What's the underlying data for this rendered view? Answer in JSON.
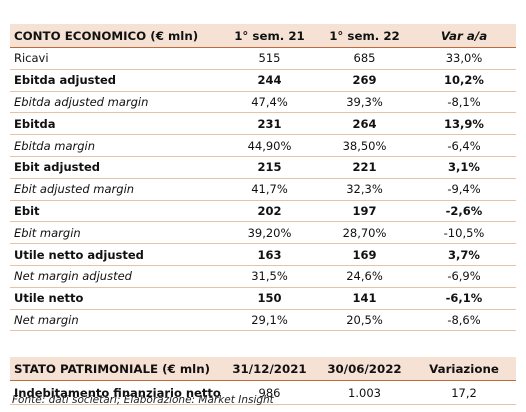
{
  "income": {
    "headers": [
      "CONTO ECONOMICO (€ mln)",
      "1° sem. 21",
      "1° sem. 22",
      "Var a/a"
    ],
    "rows": [
      {
        "label": "Ricavi",
        "v1": "515",
        "v2": "685",
        "v3": "33,0%",
        "style": "normal"
      },
      {
        "label": "Ebitda adjusted",
        "v1": "244",
        "v2": "269",
        "v3": "10,2%",
        "style": "bold"
      },
      {
        "label": "Ebitda adjusted margin",
        "v1": "47,4%",
        "v2": "39,3%",
        "v3": "-8,1%",
        "style": "italic"
      },
      {
        "label": "Ebitda",
        "v1": "231",
        "v2": "264",
        "v3": "13,9%",
        "style": "bold"
      },
      {
        "label": "Ebitda margin",
        "v1": "44,90%",
        "v2": "38,50%",
        "v3": "-6,4%",
        "style": "italic"
      },
      {
        "label": "Ebit adjusted",
        "v1": "215",
        "v2": "221",
        "v3": "3,1%",
        "style": "bold"
      },
      {
        "label": "Ebit adjusted margin",
        "v1": "41,7%",
        "v2": "32,3%",
        "v3": "-9,4%",
        "style": "italic"
      },
      {
        "label": "Ebit",
        "v1": "202",
        "v2": "197",
        "v3": "-2,6%",
        "style": "bold"
      },
      {
        "label": "Ebit margin",
        "v1": "39,20%",
        "v2": "28,70%",
        "v3": "-10,5%",
        "style": "italic"
      },
      {
        "label": "Utile netto adjusted",
        "v1": "163",
        "v2": "169",
        "v3": "3,7%",
        "style": "bold"
      },
      {
        "label": "Net margin adjusted",
        "v1": "31,5%",
        "v2": "24,6%",
        "v3": "-6,9%",
        "style": "italic"
      },
      {
        "label": "Utile netto",
        "v1": "150",
        "v2": "141",
        "v3": "-6,1%",
        "style": "bold"
      },
      {
        "label": "Net margin",
        "v1": "29,1%",
        "v2": "20,5%",
        "v3": "-8,6%",
        "style": "italic"
      }
    ]
  },
  "balance": {
    "headers": [
      "STATO PATRIMONIALE (€ mln)",
      "31/12/2021",
      "30/06/2022",
      "Variazione"
    ],
    "rows": [
      {
        "label": "Indebitamento finanziario netto",
        "v1": "986",
        "v2": "1.003",
        "v3": "17,2",
        "style": "bold-label"
      }
    ]
  },
  "footer": {
    "source": "Fonte: dati societari; Elaborazione: Market Insight"
  }
}
